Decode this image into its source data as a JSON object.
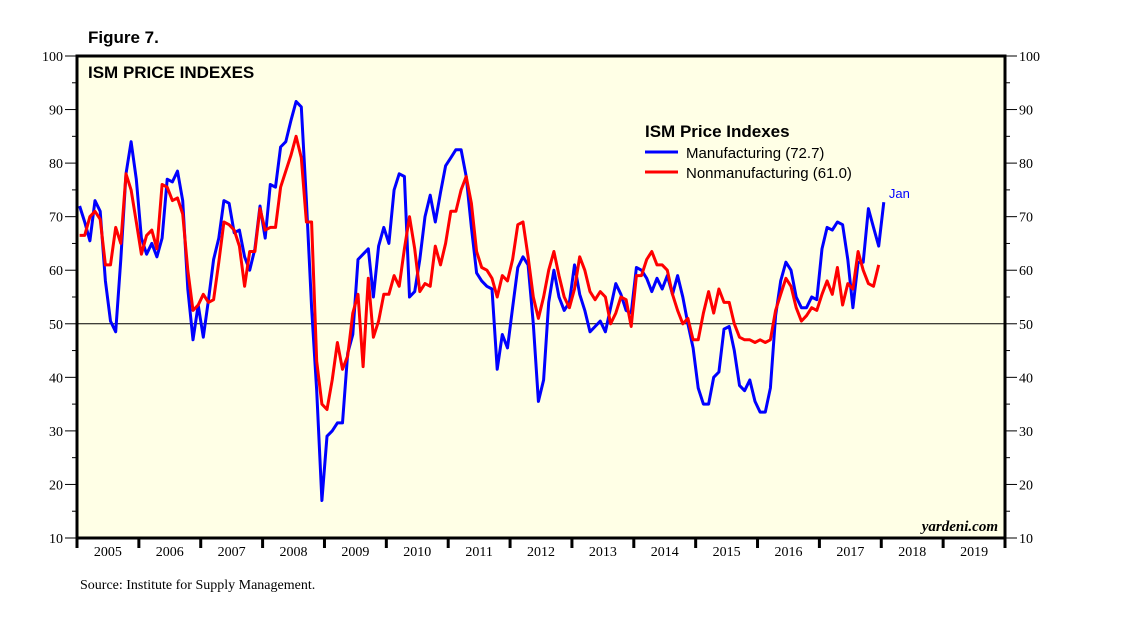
{
  "figure_label": "Figure 7.",
  "source": "Source: Institute for Supply Management.",
  "chart_data": {
    "type": "line",
    "title": "ISM PRICE INDEXES",
    "legend_title": "ISM Price Indexes",
    "legend_placement": "top-right",
    "watermark": "yardeni.com",
    "last_point_label": "Jan",
    "reference_line": 50,
    "xlabel": "",
    "ylabel": "",
    "ylim": [
      10,
      100
    ],
    "yticks": [
      10,
      20,
      30,
      40,
      50,
      60,
      70,
      80,
      90,
      100
    ],
    "xticks": [
      "2005",
      "2006",
      "2007",
      "2008",
      "2009",
      "2010",
      "2011",
      "2012",
      "2013",
      "2014",
      "2015",
      "2016",
      "2017",
      "2018",
      "2019"
    ],
    "x_start": "2005-01",
    "x_end": "2020-01",
    "grid": false,
    "colors": {
      "background": "#ffffe6",
      "manufacturing": "#0000ff",
      "nonmanufacturing": "#ff0000"
    },
    "series": [
      {
        "name": "Manufacturing (72.7)",
        "start": "2005-01",
        "values": [
          72,
          69,
          65.5,
          73,
          71,
          58,
          50.5,
          48.5,
          62,
          78,
          84,
          77,
          66,
          63,
          65,
          62.5,
          66,
          77,
          76.5,
          78.5,
          73,
          56.5,
          47,
          53.5,
          47.5,
          54.5,
          62,
          66,
          73,
          72.5,
          67,
          67.5,
          62.5,
          60,
          64,
          72,
          66,
          76,
          75.5,
          83,
          84,
          88,
          91.5,
          90.5,
          73,
          53,
          37.5,
          17,
          29,
          30,
          31.5,
          31.5,
          44.5,
          48,
          62,
          63,
          64,
          55,
          64.5,
          68,
          65,
          75,
          78,
          77.5,
          55,
          56,
          62,
          70,
          74,
          69,
          74.5,
          79.5,
          81,
          82.5,
          82.5,
          77.5,
          68,
          59.5,
          58,
          57,
          56.5,
          41.5,
          48,
          45.5,
          53,
          60.5,
          62.5,
          61,
          50,
          35.5,
          39.5,
          54,
          60,
          55,
          52.5,
          54,
          61,
          55.5,
          52.5,
          48.5,
          49.5,
          50.5,
          48.5,
          53,
          57.5,
          55.5,
          52.5,
          52,
          60.5,
          60,
          58.5,
          56,
          58.5,
          56.5,
          59,
          55.5,
          59,
          55,
          50,
          45.5,
          38,
          35,
          35,
          40,
          41,
          49,
          49.5,
          45,
          38.5,
          37.5,
          39.5,
          35.5,
          33.5,
          33.5,
          38,
          51.5,
          58,
          61.5,
          60,
          55,
          53,
          53,
          55,
          54.5,
          64,
          68,
          67.5,
          69,
          68.5,
          62,
          53,
          61.5,
          61.5,
          71.5,
          68,
          64.5,
          72.7
        ]
      },
      {
        "name": "Nonmanufacturing (61.0)",
        "start": "2005-01",
        "values": [
          66.5,
          66.5,
          70,
          71,
          69.5,
          61,
          61,
          68,
          65,
          78,
          75,
          69,
          63,
          66.5,
          67.5,
          64,
          76,
          75.5,
          73,
          73.5,
          70.5,
          60,
          52.5,
          53.5,
          55.5,
          54,
          54.5,
          61.5,
          69,
          68.5,
          67.5,
          64.5,
          57,
          63.5,
          63.5,
          71.5,
          67.5,
          68,
          68,
          75.5,
          78.5,
          81.5,
          85,
          81,
          69,
          69,
          43,
          35,
          34,
          39.5,
          46.5,
          41.5,
          44,
          52,
          55.5,
          42,
          58.5,
          47.5,
          50.5,
          55.5,
          55.5,
          59,
          57,
          64,
          70,
          64,
          56,
          57.5,
          57,
          64.5,
          61,
          65,
          71,
          71,
          75,
          77.5,
          72.5,
          63.5,
          60.5,
          60,
          58.5,
          55,
          59,
          58,
          62,
          68.5,
          69,
          62.5,
          55,
          51,
          55,
          60,
          63.5,
          59,
          55,
          53,
          56.5,
          62.5,
          60,
          56,
          54.5,
          56,
          55,
          50,
          52,
          55,
          54.5,
          49.5,
          59,
          59,
          62,
          63.5,
          61,
          61,
          60,
          55.5,
          52.5,
          50,
          51,
          47,
          47,
          52,
          56,
          52,
          56.5,
          54,
          54,
          50,
          47.5,
          47,
          47,
          46.5,
          47,
          46.5,
          47,
          52.5,
          55.5,
          58.5,
          57,
          53,
          50.5,
          51.5,
          53,
          52.5,
          55.5,
          58,
          55.5,
          60.5,
          53.5,
          57.5,
          56.5,
          63.5,
          60,
          57.5,
          57,
          61.0
        ]
      }
    ]
  }
}
